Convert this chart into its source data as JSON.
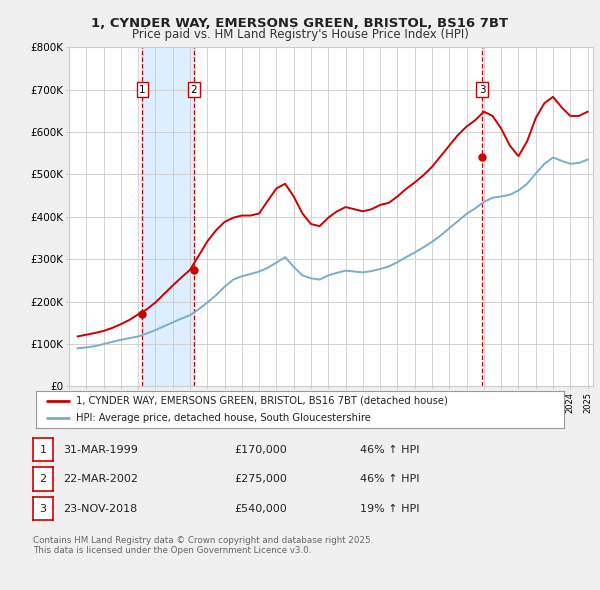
{
  "title": "1, CYNDER WAY, EMERSONS GREEN, BRISTOL, BS16 7BT",
  "subtitle": "Price paid vs. HM Land Registry's House Price Index (HPI)",
  "background_color": "#f0f0f0",
  "plot_bg_color": "#ffffff",
  "xmin": 1995,
  "xmax": 2025.3,
  "ymin": 0,
  "ymax": 800000,
  "yticks": [
    0,
    100000,
    200000,
    300000,
    400000,
    500000,
    600000,
    700000,
    800000
  ],
  "ytick_labels": [
    "£0",
    "£100K",
    "£200K",
    "£300K",
    "£400K",
    "£500K",
    "£600K",
    "£700K",
    "£800K"
  ],
  "legend_line1": "1, CYNDER WAY, EMERSONS GREEN, BRISTOL, BS16 7BT (detached house)",
  "legend_line2": "HPI: Average price, detached house, South Gloucestershire",
  "transactions": [
    {
      "num": 1,
      "date": "31-MAR-1999",
      "price": 170000,
      "pct": "46%",
      "year": 1999.25
    },
    {
      "num": 2,
      "date": "22-MAR-2002",
      "price": 275000,
      "pct": "46%",
      "year": 2002.22
    },
    {
      "num": 3,
      "date": "23-NOV-2018",
      "price": 540000,
      "pct": "19%",
      "year": 2018.9
    }
  ],
  "footer_line1": "Contains HM Land Registry data © Crown copyright and database right 2025.",
  "footer_line2": "This data is licensed under the Open Government Licence v3.0.",
  "red_color": "#cc0000",
  "blue_color": "#7aadcc",
  "shaded_region_color": "#ddeeff",
  "vline_color": "#cc0000",
  "hpi_x": [
    1995.5,
    1996.0,
    1996.5,
    1997.0,
    1997.5,
    1998.0,
    1998.5,
    1999.0,
    1999.5,
    2000.0,
    2000.5,
    2001.0,
    2001.5,
    2002.0,
    2002.5,
    2003.0,
    2003.5,
    2004.0,
    2004.5,
    2005.0,
    2005.5,
    2006.0,
    2006.5,
    2007.0,
    2007.5,
    2008.0,
    2008.5,
    2009.0,
    2009.5,
    2010.0,
    2010.5,
    2011.0,
    2011.5,
    2012.0,
    2012.5,
    2013.0,
    2013.5,
    2014.0,
    2014.5,
    2015.0,
    2015.5,
    2016.0,
    2016.5,
    2017.0,
    2017.5,
    2018.0,
    2018.5,
    2019.0,
    2019.5,
    2020.0,
    2020.5,
    2021.0,
    2021.5,
    2022.0,
    2022.5,
    2023.0,
    2023.5,
    2024.0,
    2024.5,
    2025.0
  ],
  "hpi_y": [
    90000,
    92000,
    95000,
    100000,
    105000,
    110000,
    114000,
    118000,
    125000,
    133000,
    142000,
    151000,
    160000,
    168000,
    182000,
    198000,
    215000,
    235000,
    252000,
    260000,
    265000,
    271000,
    280000,
    292000,
    305000,
    282000,
    262000,
    255000,
    252000,
    262000,
    268000,
    273000,
    271000,
    269000,
    272000,
    277000,
    283000,
    293000,
    305000,
    316000,
    328000,
    341000,
    356000,
    373000,
    390000,
    407000,
    420000,
    435000,
    445000,
    448000,
    452000,
    462000,
    478000,
    502000,
    525000,
    540000,
    532000,
    525000,
    527000,
    535000
  ],
  "price_x": [
    1995.5,
    1996.0,
    1996.5,
    1997.0,
    1997.5,
    1998.0,
    1998.5,
    1999.0,
    1999.5,
    2000.0,
    2000.5,
    2001.0,
    2001.5,
    2002.0,
    2002.5,
    2003.0,
    2003.5,
    2004.0,
    2004.5,
    2005.0,
    2005.5,
    2006.0,
    2006.5,
    2007.0,
    2007.5,
    2008.0,
    2008.5,
    2009.0,
    2009.5,
    2010.0,
    2010.5,
    2011.0,
    2011.5,
    2012.0,
    2012.5,
    2013.0,
    2013.5,
    2014.0,
    2014.5,
    2015.0,
    2015.5,
    2016.0,
    2016.5,
    2017.0,
    2017.5,
    2018.0,
    2018.5,
    2019.0,
    2019.5,
    2020.0,
    2020.5,
    2021.0,
    2021.5,
    2022.0,
    2022.5,
    2023.0,
    2023.5,
    2024.0,
    2024.5,
    2025.0
  ],
  "price_y": [
    118000,
    122000,
    126000,
    131000,
    138000,
    147000,
    157000,
    170000,
    182000,
    198000,
    218000,
    238000,
    257000,
    275000,
    308000,
    342000,
    368000,
    388000,
    398000,
    403000,
    403000,
    408000,
    438000,
    467000,
    478000,
    448000,
    408000,
    383000,
    378000,
    398000,
    413000,
    423000,
    418000,
    413000,
    418000,
    428000,
    433000,
    448000,
    466000,
    481000,
    498000,
    518000,
    543000,
    568000,
    593000,
    613000,
    628000,
    648000,
    638000,
    608000,
    568000,
    543000,
    578000,
    633000,
    668000,
    683000,
    658000,
    638000,
    638000,
    648000
  ]
}
